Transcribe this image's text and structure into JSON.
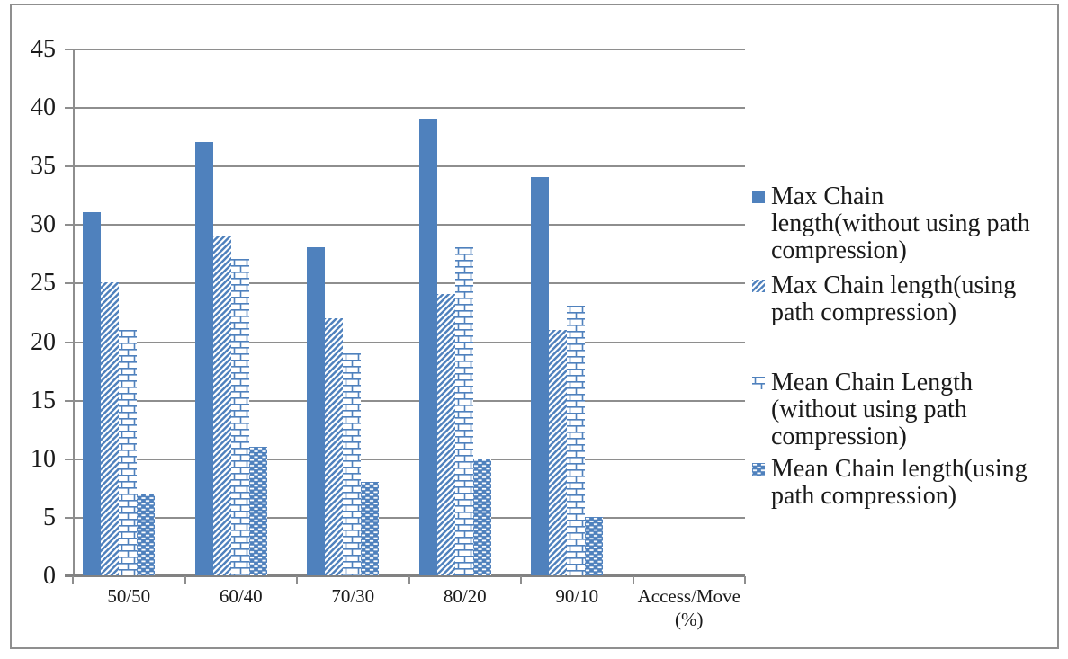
{
  "chart_data": {
    "type": "bar",
    "title": "",
    "categories": [
      "50/50",
      "60/40",
      "70/30",
      "80/20",
      "90/10"
    ],
    "x_axis_end_label_lines": [
      "Access/Move",
      "(%)"
    ],
    "xlabel": "Access/Move (%)",
    "ylabel": "",
    "ylim": [
      0,
      45
    ],
    "yticks": [
      0,
      5,
      10,
      15,
      20,
      25,
      30,
      35,
      40,
      45
    ],
    "grid": true,
    "legend_position": "right",
    "series": [
      {
        "name": "Max Chain length(without using path compression)",
        "pattern": "solid",
        "values": [
          31,
          37,
          28,
          39,
          34
        ]
      },
      {
        "name": "Max Chain length(using path compression)",
        "pattern": "diagonal",
        "values": [
          25,
          29,
          22,
          24,
          21
        ]
      },
      {
        "name": "Mean Chain Length (without using path compression)",
        "pattern": "brick",
        "values": [
          21,
          27,
          19,
          28,
          23
        ]
      },
      {
        "name": "Mean Chain length(using path compression)",
        "pattern": "dots",
        "values": [
          7,
          11,
          8,
          10,
          5
        ]
      }
    ],
    "colors": {
      "bar": "#4F81BD",
      "gridline": "#8E8E8E",
      "axis": "#828282",
      "frame_border": "#8F8F8F",
      "text": "#1A1A1A"
    }
  },
  "legend": {
    "items": [
      {
        "marker": "solid-square",
        "lines": [
          "Max Chain",
          "length(without using path",
          "compression)"
        ]
      },
      {
        "marker": "diagonal-square",
        "lines": [
          "Max Chain length(using",
          "path compression)"
        ]
      },
      {
        "marker": "brick-square",
        "lines": [
          "Mean Chain Length",
          "(without using path",
          "compression)"
        ]
      },
      {
        "marker": "dots-square",
        "lines": [
          "Mean Chain length(using",
          "path compression)"
        ]
      }
    ]
  }
}
